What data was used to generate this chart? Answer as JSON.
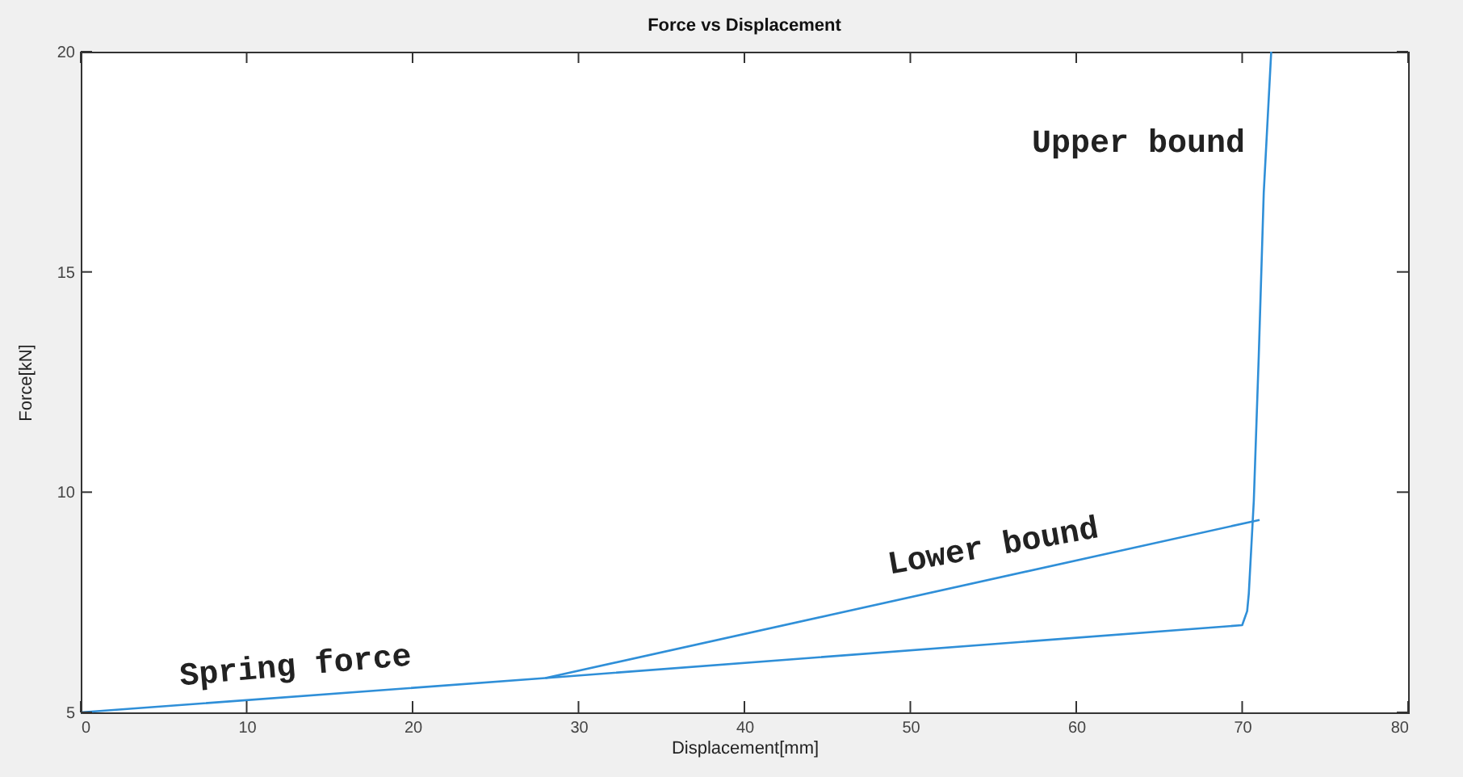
{
  "chart_data": {
    "type": "line",
    "title": "Force vs Displacement",
    "xlabel": "Displacement[mm]",
    "ylabel": "Force[kN]",
    "xlim": [
      0,
      80
    ],
    "ylim": [
      5,
      20
    ],
    "xticks": [
      0,
      10,
      20,
      30,
      40,
      50,
      60,
      70,
      80
    ],
    "yticks": [
      5,
      10,
      15,
      20
    ],
    "grid": false,
    "marker": "none",
    "line_style": "solid",
    "series": [
      {
        "color": "#2f8fd8",
        "x": [
          0,
          28,
          70,
          70.3,
          70.4,
          70.7,
          71,
          71.3,
          71.75
        ],
        "values": [
          5,
          5.78,
          6.98,
          7.3,
          7.7,
          9.8,
          13.1,
          16.8,
          20
        ]
      },
      {
        "color": "#2f8fd8",
        "x": [
          28,
          71.05
        ],
        "values": [
          5.78,
          9.37
        ]
      }
    ],
    "annotations": [
      "Spring force",
      "Lower bound",
      "Upper bound"
    ]
  }
}
